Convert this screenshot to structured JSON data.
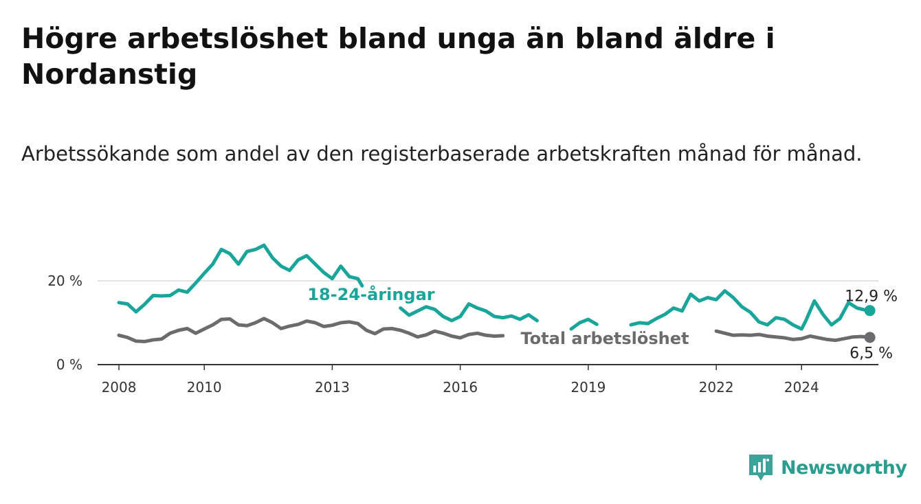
{
  "title": "Högre arbetslöshet bland unga än bland äldre i Nordanstig",
  "subtitle": "Arbetssökande som andel av den registerbaserade arbetskraften månad för månad.",
  "brand": {
    "name": "Newsworthy",
    "icon": "newsworthy-logo-icon",
    "color": "#3aa39a"
  },
  "chart_data": {
    "type": "line",
    "y_ticks": [
      {
        "value": 0,
        "label": "0 %"
      },
      {
        "value": 20,
        "label": "20 %"
      }
    ],
    "x_ticks": [
      "2008",
      "2010",
      "2013",
      "2016",
      "2019",
      "2022",
      "2024"
    ],
    "ylim": [
      0,
      30
    ],
    "xlim": [
      2007.5,
      2025.8
    ],
    "grid": true,
    "series": [
      {
        "name": "18-24-åringar",
        "color": "#1aa59a",
        "end_label": "12,9 %",
        "points": [
          [
            2008.0,
            14.8
          ],
          [
            2008.2,
            14.5
          ],
          [
            2008.4,
            12.6
          ],
          [
            2008.6,
            14.4
          ],
          [
            2008.8,
            16.5
          ],
          [
            2009.0,
            16.4
          ],
          [
            2009.2,
            16.5
          ],
          [
            2009.4,
            17.8
          ],
          [
            2009.6,
            17.3
          ],
          [
            2009.8,
            19.5
          ],
          [
            2010.0,
            21.8
          ],
          [
            2010.2,
            24.0
          ],
          [
            2010.4,
            27.5
          ],
          [
            2010.6,
            26.5
          ],
          [
            2010.8,
            24.0
          ],
          [
            2011.0,
            27.0
          ],
          [
            2011.2,
            27.5
          ],
          [
            2011.4,
            28.5
          ],
          [
            2011.6,
            25.5
          ],
          [
            2011.8,
            23.5
          ],
          [
            2012.0,
            22.5
          ],
          [
            2012.2,
            25.0
          ],
          [
            2012.4,
            26.0
          ],
          [
            2012.6,
            24.0
          ],
          [
            2012.8,
            22.0
          ],
          [
            2013.0,
            20.5
          ],
          [
            2013.2,
            23.5
          ],
          [
            2013.4,
            21.0
          ],
          [
            2013.6,
            20.5
          ],
          [
            2013.7,
            18.8
          ]
        ],
        "points_2": [
          [
            2014.6,
            13.5
          ],
          [
            2014.8,
            11.8
          ],
          [
            2015.0,
            12.8
          ],
          [
            2015.2,
            13.8
          ],
          [
            2015.4,
            13.2
          ],
          [
            2015.6,
            11.5
          ],
          [
            2015.8,
            10.5
          ],
          [
            2016.0,
            11.5
          ],
          [
            2016.2,
            14.5
          ],
          [
            2016.4,
            13.5
          ],
          [
            2016.6,
            12.8
          ],
          [
            2016.8,
            11.5
          ],
          [
            2017.0,
            11.2
          ],
          [
            2017.2,
            11.6
          ],
          [
            2017.4,
            10.8
          ],
          [
            2017.6,
            11.9
          ],
          [
            2017.8,
            10.5
          ]
        ],
        "points_3": [
          [
            2018.6,
            8.5
          ],
          [
            2018.8,
            10.0
          ],
          [
            2019.0,
            10.8
          ],
          [
            2019.2,
            9.6
          ]
        ],
        "points_4": [
          [
            2020.0,
            9.5
          ],
          [
            2020.2,
            10.0
          ],
          [
            2020.4,
            9.8
          ],
          [
            2020.6,
            11.0
          ],
          [
            2020.8,
            12.0
          ],
          [
            2021.0,
            13.5
          ],
          [
            2021.2,
            12.8
          ],
          [
            2021.4,
            16.8
          ],
          [
            2021.6,
            15.2
          ],
          [
            2021.8,
            16.0
          ],
          [
            2022.0,
            15.5
          ],
          [
            2022.2,
            17.6
          ],
          [
            2022.4,
            16.0
          ],
          [
            2022.6,
            13.8
          ],
          [
            2022.8,
            12.5
          ],
          [
            2023.0,
            10.2
          ],
          [
            2023.2,
            9.5
          ],
          [
            2023.4,
            11.2
          ],
          [
            2023.6,
            10.8
          ],
          [
            2023.8,
            9.5
          ],
          [
            2024.0,
            8.5
          ],
          [
            2024.1,
            10.5
          ],
          [
            2024.3,
            15.2
          ],
          [
            2024.5,
            12.0
          ],
          [
            2024.7,
            9.5
          ],
          [
            2024.9,
            11.0
          ],
          [
            2025.1,
            14.8
          ],
          [
            2025.3,
            13.5
          ],
          [
            2025.5,
            13.0
          ],
          [
            2025.6,
            12.9
          ]
        ]
      },
      {
        "name": "Total arbetslöshet",
        "color": "#6b6b6e",
        "end_label": "6,5 %",
        "points": [
          [
            2008.0,
            7.0
          ],
          [
            2008.2,
            6.5
          ],
          [
            2008.4,
            5.6
          ],
          [
            2008.6,
            5.5
          ],
          [
            2008.8,
            5.9
          ],
          [
            2009.0,
            6.1
          ],
          [
            2009.2,
            7.5
          ],
          [
            2009.4,
            8.2
          ],
          [
            2009.6,
            8.6
          ],
          [
            2009.8,
            7.5
          ],
          [
            2010.0,
            8.5
          ],
          [
            2010.2,
            9.5
          ],
          [
            2010.4,
            10.8
          ],
          [
            2010.6,
            10.9
          ],
          [
            2010.8,
            9.5
          ],
          [
            2011.0,
            9.3
          ],
          [
            2011.2,
            10.0
          ],
          [
            2011.4,
            11.0
          ],
          [
            2011.6,
            10.0
          ],
          [
            2011.8,
            8.6
          ],
          [
            2012.0,
            9.2
          ],
          [
            2012.2,
            9.6
          ],
          [
            2012.4,
            10.4
          ],
          [
            2012.6,
            10.0
          ],
          [
            2012.8,
            9.1
          ],
          [
            2013.0,
            9.4
          ],
          [
            2013.2,
            10.0
          ],
          [
            2013.4,
            10.2
          ],
          [
            2013.6,
            9.8
          ],
          [
            2013.8,
            8.2
          ],
          [
            2014.0,
            7.4
          ],
          [
            2014.2,
            8.5
          ],
          [
            2014.4,
            8.6
          ],
          [
            2014.6,
            8.2
          ],
          [
            2014.8,
            7.5
          ],
          [
            2015.0,
            6.6
          ],
          [
            2015.2,
            7.1
          ],
          [
            2015.4,
            8.0
          ],
          [
            2015.6,
            7.5
          ],
          [
            2015.8,
            6.8
          ],
          [
            2016.0,
            6.4
          ],
          [
            2016.2,
            7.2
          ],
          [
            2016.4,
            7.5
          ],
          [
            2016.6,
            7.0
          ],
          [
            2016.8,
            6.8
          ],
          [
            2017.0,
            6.9
          ]
        ],
        "points_2": [
          [
            2022.0,
            8.0
          ],
          [
            2022.2,
            7.5
          ],
          [
            2022.4,
            7.0
          ],
          [
            2022.6,
            7.1
          ],
          [
            2022.8,
            7.0
          ],
          [
            2023.0,
            7.2
          ],
          [
            2023.2,
            6.8
          ],
          [
            2023.4,
            6.6
          ],
          [
            2023.6,
            6.4
          ],
          [
            2023.8,
            6.0
          ],
          [
            2024.0,
            6.2
          ],
          [
            2024.2,
            6.8
          ],
          [
            2024.4,
            6.4
          ],
          [
            2024.6,
            6.0
          ],
          [
            2024.8,
            5.8
          ],
          [
            2025.0,
            6.2
          ],
          [
            2025.2,
            6.6
          ],
          [
            2025.4,
            6.7
          ],
          [
            2025.6,
            6.5
          ]
        ]
      }
    ]
  }
}
